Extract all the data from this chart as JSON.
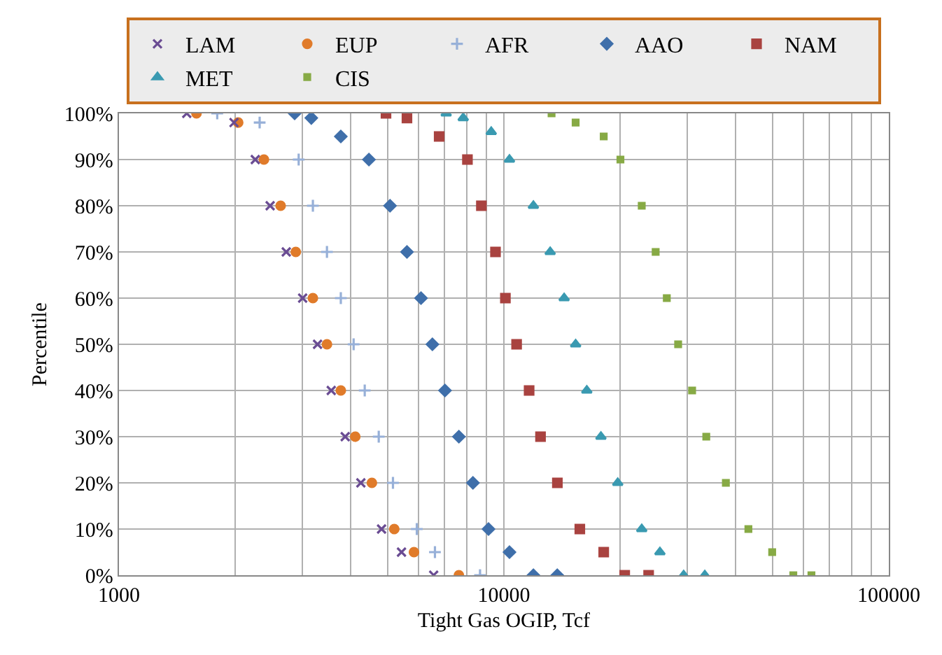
{
  "chart_data": {
    "type": "scatter",
    "xlabel": "Tight Gas OGIP, Tcf",
    "ylabel": "Percentile",
    "log": "x",
    "grid": true,
    "legend": "top",
    "xlim": [
      1000,
      100000
    ],
    "xticks": [
      1000,
      {
        "value": 2000,
        "label": null
      },
      {
        "value": 3000,
        "label": null
      },
      {
        "value": 4000,
        "label": null
      },
      {
        "value": 5000,
        "label": null
      },
      {
        "value": 6000,
        "label": null
      },
      {
        "value": 7000,
        "label": null
      },
      {
        "value": 8000,
        "label": null
      },
      {
        "value": 9000,
        "label": null
      },
      10000,
      {
        "value": 20000,
        "label": null
      },
      {
        "value": 30000,
        "label": null
      },
      {
        "value": 40000,
        "label": null
      },
      {
        "value": 50000,
        "label": null
      },
      {
        "value": 60000,
        "label": null
      },
      {
        "value": 70000,
        "label": null
      },
      {
        "value": 80000,
        "label": null
      },
      {
        "value": 90000,
        "label": null
      },
      100000
    ],
    "ylim": [
      0,
      100
    ],
    "yticks": [
      {
        "value": 0,
        "label": "0%"
      },
      {
        "value": 10,
        "label": "10%"
      },
      {
        "value": 20,
        "label": "20%"
      },
      {
        "value": 30,
        "label": "30%"
      },
      {
        "value": 40,
        "label": "40%"
      },
      {
        "value": 50,
        "label": "50%"
      },
      {
        "value": 60,
        "label": "60%"
      },
      {
        "value": 70,
        "label": "70%"
      },
      {
        "value": 80,
        "label": "80%"
      },
      {
        "value": 90,
        "label": "90%"
      },
      {
        "value": 100,
        "label": "100%"
      }
    ],
    "series": [
      {
        "name": "LAM",
        "color": "#6a4c93",
        "marker": "cross",
        "x": [
          1500,
          1990,
          2260,
          2470,
          2720,
          3000,
          3280,
          3560,
          3870,
          4250,
          4810,
          5420,
          6570
        ],
        "values": [
          100,
          98,
          90,
          80,
          70,
          60,
          50,
          40,
          30,
          20,
          10,
          5,
          0
        ]
      },
      {
        "name": "EUP",
        "color": "#e07b2a",
        "marker": "circle",
        "x": [
          1590,
          2040,
          2380,
          2630,
          2880,
          3190,
          3470,
          3770,
          4110,
          4540,
          5190,
          5840,
          7640
        ],
        "values": [
          100,
          98,
          90,
          80,
          70,
          60,
          50,
          40,
          30,
          20,
          10,
          5,
          0
        ]
      },
      {
        "name": "AFR",
        "color": "#97b0d8",
        "marker": "plus",
        "x": [
          1800,
          2320,
          2930,
          3190,
          3470,
          3770,
          4070,
          4350,
          4730,
          5150,
          5940,
          6620,
          8670
        ],
        "values": [
          100,
          98,
          90,
          80,
          70,
          60,
          50,
          40,
          30,
          20,
          10,
          5,
          0
        ]
      },
      {
        "name": "AAO",
        "color": "#3f6faa",
        "marker": "diamond",
        "x": [
          2860,
          3160,
          3770,
          4460,
          5060,
          5600,
          6090,
          6520,
          7030,
          7640,
          8310,
          9120,
          10340,
          11930,
          13760
        ],
        "values": [
          100,
          99,
          95,
          90,
          80,
          70,
          60,
          50,
          40,
          30,
          20,
          10,
          5,
          0,
          0
        ]
      },
      {
        "name": "NAM",
        "color": "#a94340",
        "marker": "square",
        "x": [
          4940,
          5600,
          6790,
          8040,
          8740,
          9510,
          10090,
          10790,
          11630,
          12450,
          13770,
          15750,
          18170,
          20600,
          23770
        ],
        "values": [
          100,
          99,
          95,
          90,
          80,
          70,
          60,
          50,
          40,
          30,
          20,
          10,
          5,
          0,
          0
        ]
      },
      {
        "name": "MET",
        "color": "#3a9ab1",
        "marker": "triangle",
        "x": [
          7080,
          7840,
          9270,
          10340,
          11930,
          13190,
          14340,
          15360,
          16420,
          17870,
          19760,
          22810,
          25430,
          29310,
          33260
        ],
        "values": [
          100,
          99,
          96,
          90,
          80,
          70,
          60,
          50,
          40,
          30,
          20,
          10,
          5,
          0,
          0
        ]
      },
      {
        "name": "CIS",
        "color": "#87aa45",
        "marker": "square",
        "x": [
          13300,
          15360,
          18170,
          20080,
          22810,
          24790,
          26500,
          28360,
          30830,
          33560,
          37730,
          43170,
          49770,
          56480,
          62950
        ],
        "values": [
          100,
          98,
          95,
          90,
          80,
          70,
          60,
          50,
          40,
          30,
          20,
          10,
          5,
          0,
          0
        ]
      }
    ]
  }
}
